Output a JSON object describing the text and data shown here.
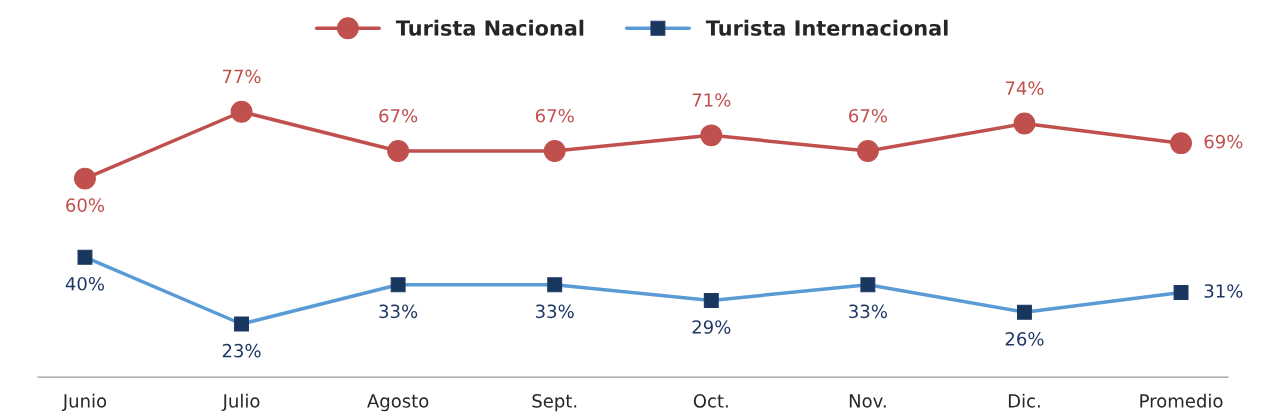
{
  "chart_data": {
    "type": "line",
    "categories": [
      "Junio",
      "Julio",
      "Agosto",
      "Sept.",
      "Oct.",
      "Nov.",
      "Dic.",
      "Promedio"
    ],
    "series": [
      {
        "name": "Turista Nacional",
        "color": "#c0504d",
        "marker": "circle",
        "values": [
          60,
          77,
          67,
          67,
          71,
          67,
          74,
          69
        ],
        "value_labels": [
          "60%",
          "77%",
          "67%",
          "67%",
          "71%",
          "67%",
          "74%",
          "69%"
        ]
      },
      {
        "name": "Turista Internacional",
        "color": "#5b9bd5",
        "marker": "square",
        "values": [
          40,
          23,
          33,
          33,
          29,
          33,
          26,
          31
        ],
        "value_labels": [
          "40%",
          "23%",
          "33%",
          "33%",
          "29%",
          "33%",
          "26%",
          "31%"
        ]
      }
    ],
    "legend": "top",
    "grid": false,
    "tick_labels": "x",
    "line_style": "solid"
  }
}
